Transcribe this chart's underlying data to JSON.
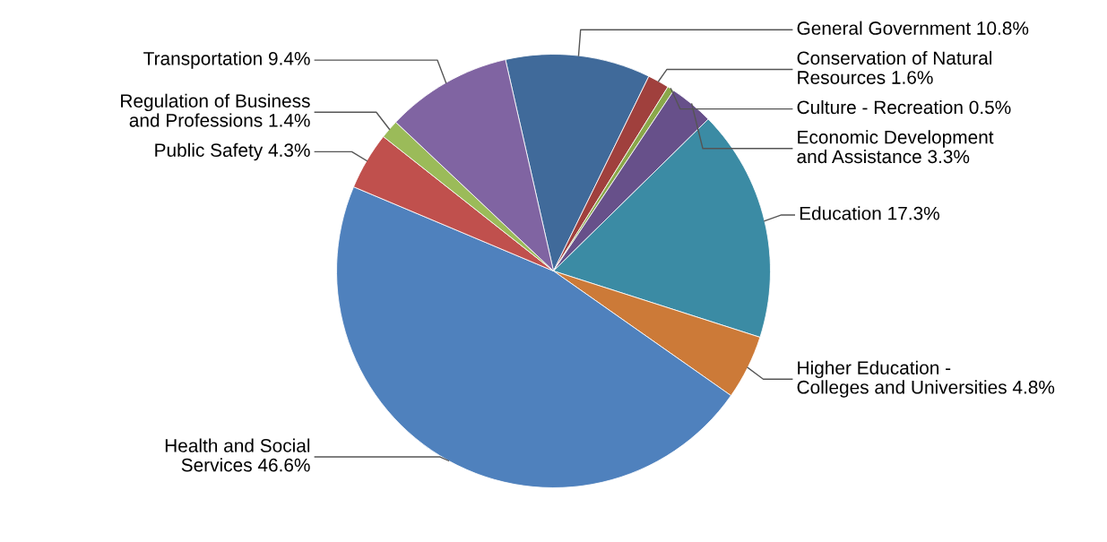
{
  "chart_data": {
    "type": "pie",
    "categories": [
      "General Government",
      "Conservation of Natural\nResources",
      "Culture - Recreation",
      "Economic Development\nand Assistance",
      "Education",
      "Higher Education -\nColleges and Universities",
      "Health and Social\nServices",
      "Public Safety",
      "Regulation of Business\nand Professions",
      "Transportation"
    ],
    "values": [
      10.8,
      1.6,
      0.5,
      3.3,
      17.3,
      4.8,
      46.6,
      4.3,
      1.4,
      9.4
    ],
    "value_labels": [
      "10.8%",
      "1.6%",
      "0.5%",
      "3.3%",
      "17.3%",
      "4.8%",
      "46.6%",
      "4.3%",
      "1.4%",
      "9.4%"
    ],
    "colors": [
      "#406a9a",
      "#a0403d",
      "#8aa84a",
      "#67508a",
      "#3b8ba4",
      "#cc7a38",
      "#4f81bd",
      "#c0504d",
      "#9bbb59",
      "#8064a2"
    ],
    "legend": false
  }
}
